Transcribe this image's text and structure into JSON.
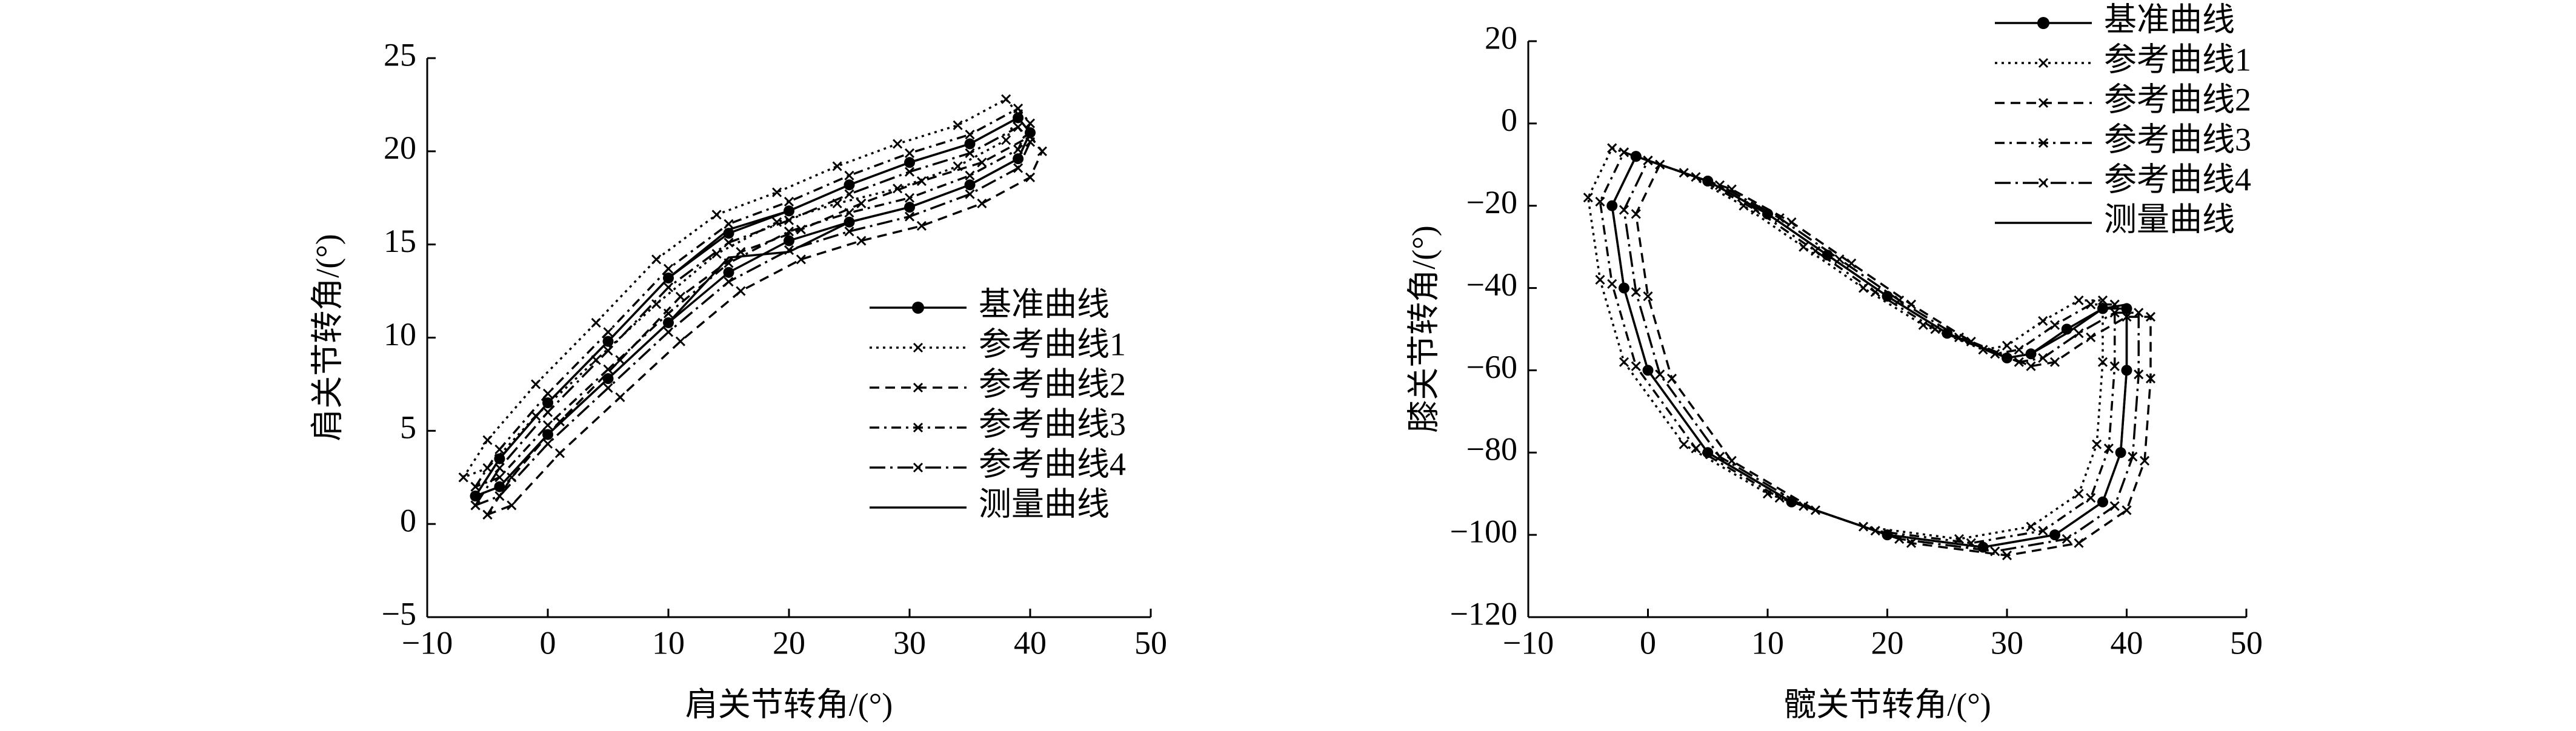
{
  "chart_data": [
    {
      "type": "line",
      "xlabel": "肩关节转角/(°)",
      "ylabel": "肩关节转角/(°)",
      "xlim": [
        -10,
        50
      ],
      "ylim": [
        -5,
        25
      ],
      "xticks": [
        {
          "value": -10,
          "label": "−10"
        },
        0,
        10,
        20,
        30,
        40,
        50
      ],
      "yticks": [
        {
          "value": -5,
          "label": "−5"
        },
        0,
        5,
        10,
        15,
        20,
        25
      ],
      "legend": "lower right",
      "series": [
        {
          "name": "基准曲线",
          "color": "#000000",
          "line_style": "solid",
          "marker": "dot",
          "x": [
            -6,
            -4,
            0,
            5,
            10,
            15,
            20,
            25,
            30,
            35,
            39,
            40,
            39,
            35,
            30,
            25,
            20,
            15,
            10,
            5,
            0,
            -4,
            -6
          ],
          "values": [
            1.5,
            3.5,
            6.5,
            9.8,
            13.2,
            15.6,
            16.8,
            18.2,
            19.4,
            20.4,
            21.8,
            21,
            19.6,
            18.2,
            17,
            16.2,
            15.2,
            13.5,
            10.8,
            7.8,
            4.8,
            2,
            1.5
          ]
        },
        {
          "name": "参考曲线1",
          "color": "#000000",
          "line_style": "dotted",
          "marker": "x",
          "x": [
            -7,
            -5,
            -1,
            4,
            9,
            14,
            19,
            24,
            29,
            34,
            38,
            39,
            38,
            34,
            29,
            24,
            19,
            14,
            9,
            4,
            -1,
            -5,
            -7
          ],
          "values": [
            2.5,
            4.5,
            7.5,
            10.8,
            14.2,
            16.6,
            17.8,
            19.2,
            20.4,
            21.4,
            22.8,
            22,
            20.6,
            19.2,
            18,
            17.2,
            16.2,
            14.5,
            11.8,
            8.8,
            5.8,
            3,
            2.5
          ]
        },
        {
          "name": "参考曲线2",
          "color": "#000000",
          "line_style": "dashed",
          "marker": "x",
          "x": [
            -5,
            -3,
            1,
            6,
            11,
            16,
            21,
            26,
            31,
            36,
            40,
            41,
            40,
            36,
            31,
            26,
            21,
            16,
            11,
            6,
            1,
            -3,
            -5
          ],
          "values": [
            0.5,
            2.5,
            5.5,
            8.8,
            12.2,
            14.6,
            15.8,
            17.2,
            18.4,
            19.4,
            20.8,
            20,
            18.6,
            17.2,
            16,
            15.2,
            14.2,
            12.5,
            9.8,
            6.8,
            3.8,
            1,
            0.5
          ]
        },
        {
          "name": "参考曲线3",
          "color": "#000000",
          "line_style": "dashdot",
          "marker": "x",
          "x": [
            -6,
            -4,
            0,
            5,
            10,
            15,
            20,
            25,
            30,
            35,
            39,
            40,
            39,
            35,
            30,
            25,
            20,
            15,
            10,
            5,
            0,
            -4,
            -6
          ],
          "values": [
            2,
            4,
            7,
            10.3,
            13.7,
            16.1,
            17.3,
            18.7,
            19.9,
            20.9,
            22.3,
            21.5,
            20.1,
            18.7,
            17.5,
            16.7,
            15.7,
            14,
            11.3,
            8.3,
            5.3,
            2.5,
            2
          ]
        },
        {
          "name": "参考曲线4",
          "color": "#000000",
          "line_style": "longdashdot",
          "marker": "x",
          "x": [
            -6,
            -4,
            0,
            5,
            10,
            15,
            20,
            25,
            30,
            35,
            39,
            40,
            39,
            35,
            30,
            25,
            20,
            15,
            10,
            5,
            0,
            -4,
            -6
          ],
          "values": [
            1,
            3,
            6,
            9.3,
            12.7,
            15.1,
            16.3,
            17.7,
            18.9,
            19.9,
            21.3,
            20.5,
            19.1,
            17.7,
            16.5,
            15.7,
            14.7,
            13,
            10.3,
            7.3,
            4.3,
            1.5,
            1
          ]
        },
        {
          "name": "测量曲线",
          "color": "#000000",
          "line_style": "solid",
          "marker": "none",
          "x": [
            -6,
            -4,
            0,
            5,
            10,
            15,
            20,
            25,
            30,
            35,
            39,
            40,
            39,
            35,
            30,
            25,
            20,
            15,
            10,
            5,
            0,
            -4,
            -6
          ],
          "values": [
            1.5,
            3.5,
            6.5,
            9.8,
            13.2,
            15.8,
            16.8,
            18.2,
            19.4,
            20.4,
            21.8,
            21,
            19.6,
            18.2,
            17,
            16.2,
            14.6,
            14.3,
            10.8,
            7.8,
            4.8,
            2,
            1.5
          ]
        }
      ]
    },
    {
      "type": "line",
      "xlabel": "髋关节转角/(°)",
      "ylabel": "膝关节转角/(°)",
      "xlim": [
        -10,
        50
      ],
      "ylim": [
        -120,
        20
      ],
      "xticks": [
        {
          "value": -10,
          "label": "−10"
        },
        0,
        10,
        20,
        30,
        40,
        50
      ],
      "yticks": [
        {
          "value": -120,
          "label": "−120"
        },
        {
          "value": -100,
          "label": "−100"
        },
        {
          "value": -80,
          "label": "−80"
        },
        {
          "value": -60,
          "label": "−60"
        },
        {
          "value": -40,
          "label": "−40"
        },
        {
          "value": -20,
          "label": "−20"
        },
        0,
        20
      ],
      "legend": "upper right",
      "series": [
        {
          "name": "基准曲线",
          "color": "#000000",
          "line_style": "solid",
          "marker": "dot",
          "x": [
            -1,
            5,
            10,
            15,
            20,
            25,
            30,
            32,
            35,
            38,
            40,
            40,
            39.5,
            38,
            34,
            28,
            20,
            12,
            5,
            0,
            -2,
            -3,
            -1
          ],
          "values": [
            -8,
            -14,
            -22,
            -32,
            -42,
            -51,
            -57,
            -56,
            -50,
            -45,
            -45,
            -60,
            -80,
            -92,
            -100,
            -103,
            -100,
            -92,
            -80,
            -60,
            -40,
            -20,
            -8
          ]
        },
        {
          "name": "参考曲线1",
          "color": "#000000",
          "line_style": "dotted",
          "marker": "x",
          "x": [
            -3,
            3,
            8,
            13,
            18,
            23,
            28,
            30,
            33,
            36,
            38,
            38,
            37.5,
            36,
            32,
            26,
            18,
            10,
            3,
            -2,
            -4,
            -5,
            -3
          ],
          "values": [
            -6,
            -12,
            -20,
            -30,
            -40,
            -49,
            -55,
            -54,
            -48,
            -43,
            -43,
            -58,
            -78,
            -90,
            -98,
            -101,
            -98,
            -90,
            -78,
            -58,
            -38,
            -18,
            -6
          ]
        },
        {
          "name": "参考曲线2",
          "color": "#000000",
          "line_style": "dashed",
          "marker": "x",
          "x": [
            1,
            7,
            12,
            17,
            22,
            27,
            32,
            34,
            37,
            40,
            42,
            42,
            41.5,
            40,
            36,
            30,
            22,
            14,
            7,
            2,
            0,
            -1,
            1
          ],
          "values": [
            -10,
            -16,
            -24,
            -34,
            -44,
            -53,
            -59,
            -58,
            -52,
            -47,
            -47,
            -62,
            -82,
            -94,
            -102,
            -105,
            -102,
            -94,
            -82,
            -62,
            -42,
            -22,
            -10
          ]
        },
        {
          "name": "参考曲线3",
          "color": "#000000",
          "line_style": "dashdot",
          "marker": "x",
          "x": [
            -2,
            4,
            9,
            14,
            19,
            24,
            29,
            31,
            34,
            37,
            39,
            39,
            38.5,
            37,
            33,
            27,
            19,
            11,
            4,
            -1,
            -3,
            -4,
            -2
          ],
          "values": [
            -7,
            -13,
            -21,
            -31,
            -41,
            -50,
            -56,
            -55,
            -49,
            -44,
            -44,
            -59,
            -79,
            -91,
            -99,
            -102,
            -99,
            -91,
            -79,
            -59,
            -39,
            -19,
            -7
          ]
        },
        {
          "name": "参考曲线4",
          "color": "#000000",
          "line_style": "longdashdot",
          "marker": "x",
          "x": [
            0,
            6,
            11,
            16,
            21,
            26,
            31,
            33,
            36,
            39,
            41,
            41,
            40.5,
            39,
            35,
            29,
            21,
            13,
            6,
            1,
            -1,
            -2,
            0
          ],
          "values": [
            -9,
            -15,
            -23,
            -33,
            -43,
            -52,
            -58,
            -57,
            -51,
            -46,
            -46,
            -61,
            -81,
            -93,
            -101,
            -104,
            -101,
            -93,
            -81,
            -61,
            -41,
            -21,
            -9
          ]
        },
        {
          "name": "测量曲线",
          "color": "#000000",
          "line_style": "solid",
          "marker": "none",
          "x": [
            -1,
            5,
            10,
            15,
            20,
            25,
            30,
            32,
            35,
            38,
            40,
            40,
            39.5,
            38,
            34,
            28,
            20,
            12,
            5,
            0,
            -2,
            -3,
            -1
          ],
          "values": [
            -8,
            -14,
            -22,
            -32,
            -42,
            -51,
            -57,
            -56,
            -51,
            -45,
            -44,
            -60,
            -80,
            -92,
            -100,
            -103,
            -100,
            -92,
            -80,
            -60,
            -40,
            -20,
            -8
          ]
        }
      ]
    }
  ]
}
